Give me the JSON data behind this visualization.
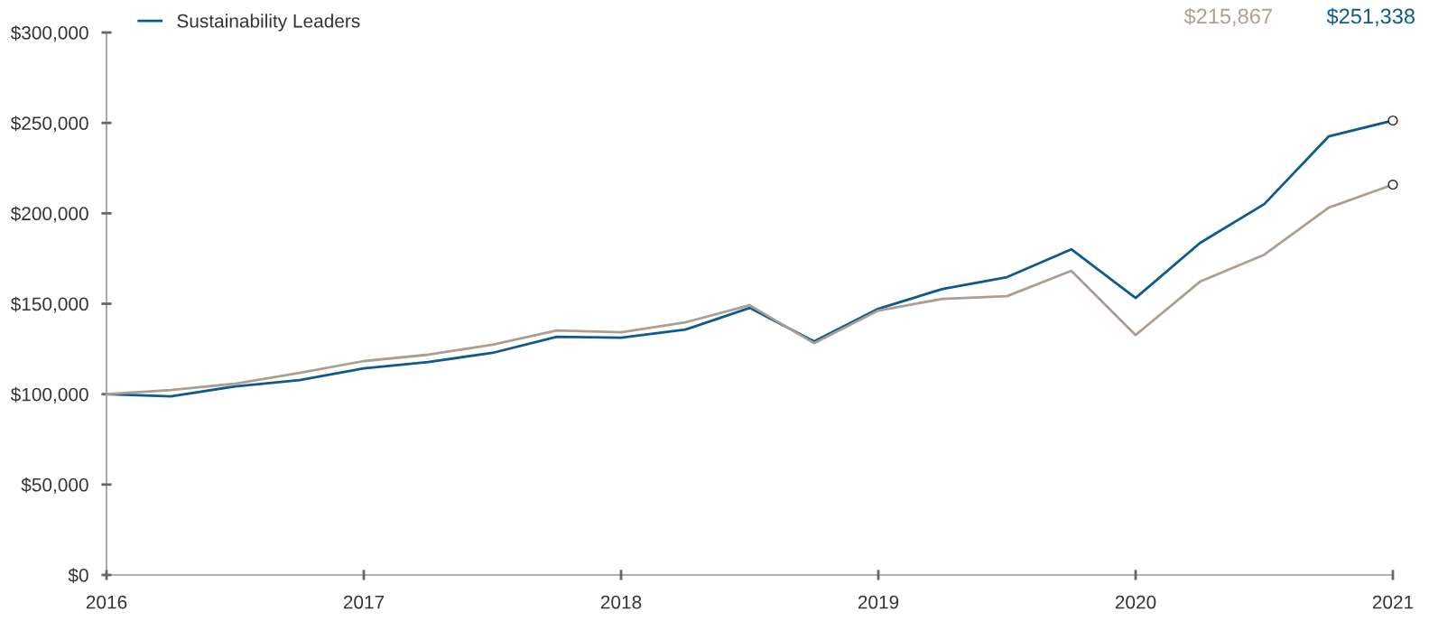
{
  "chart_data": {
    "type": "line",
    "x": [
      2016,
      2016.25,
      2016.5,
      2016.75,
      2017,
      2017.25,
      2017.5,
      2017.75,
      2018,
      2018.25,
      2018.5,
      2018.75,
      2019,
      2019.25,
      2019.5,
      2019.75,
      2020,
      2020.25,
      2020.5,
      2020.75,
      2021
    ],
    "series": [
      {
        "name": "Sustainability Leaders",
        "color": "#0f5a8c",
        "values": [
          100000,
          98800,
          104300,
          107800,
          114300,
          117800,
          122800,
          131700,
          131200,
          135700,
          147700,
          129200,
          147200,
          158200,
          164700,
          180100,
          153200,
          183600,
          205100,
          242500,
          251338
        ]
      },
      {
        "color": "#ab9f93",
        "values": [
          100000,
          102300,
          105800,
          111800,
          118300,
          121800,
          127300,
          135200,
          134200,
          139700,
          149200,
          128200,
          146200,
          152700,
          154200,
          168200,
          132700,
          162200,
          177100,
          203100,
          215867
        ]
      }
    ],
    "annotations": [
      "$215,867",
      "$251,338"
    ],
    "xlim": [
      2016,
      2021
    ],
    "xticks": [
      2016,
      2017,
      2018,
      2019,
      2020,
      2021
    ],
    "ylim": [
      0,
      300000
    ],
    "yticks": [
      {
        "value": 0,
        "label": "$0"
      },
      {
        "value": 50000,
        "label": "$50,000"
      },
      {
        "value": 100000,
        "label": "$100,000"
      },
      {
        "value": 150000,
        "label": "$150,000"
      },
      {
        "value": 200000,
        "label": "$200,000"
      },
      {
        "value": 250000,
        "label": "$250,000"
      },
      {
        "value": 300000,
        "label": "$300,000"
      }
    ],
    "grid": false,
    "legend": "top left",
    "line_style": "solid"
  }
}
